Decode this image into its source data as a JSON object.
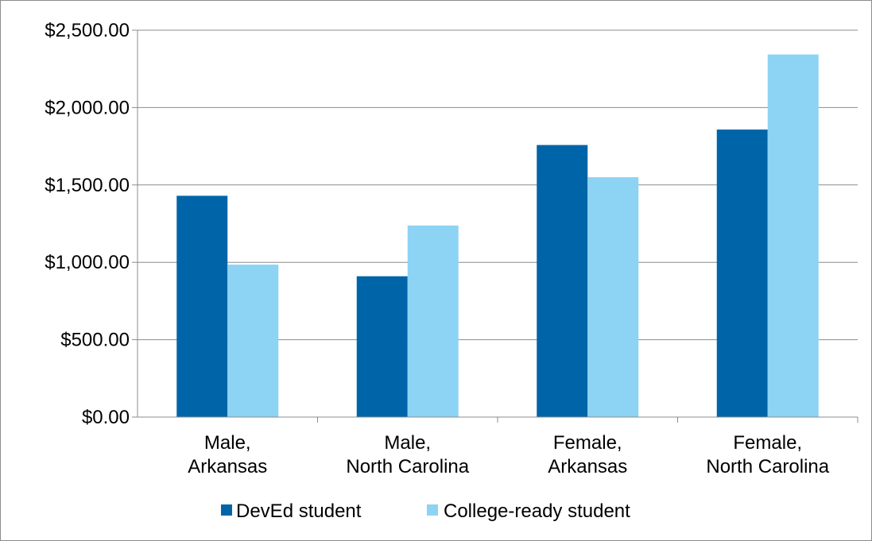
{
  "chart_data": {
    "type": "bar",
    "categories": [
      [
        "Male,",
        "Arkansas"
      ],
      [
        "Male,",
        "North Carolina"
      ],
      [
        "Female,",
        "Arkansas"
      ],
      [
        "Female,",
        "North Carolina"
      ]
    ],
    "series": [
      {
        "name": "DevEd student",
        "color": "#0065A8",
        "values": [
          1430,
          910,
          1758,
          1858
        ]
      },
      {
        "name": "College-ready student",
        "color": "#8DD3F3",
        "values": [
          985,
          1238,
          1550,
          2343
        ]
      }
    ],
    "y_ticks": [
      "$0.00",
      "$500.00",
      "$1,000.00",
      "$1,500.00",
      "$2,000.00",
      "$2,500.00"
    ],
    "ylim": [
      0,
      2500
    ],
    "grid": true,
    "legend_position": "bottom",
    "title": "",
    "xlabel": "",
    "ylabel": ""
  }
}
